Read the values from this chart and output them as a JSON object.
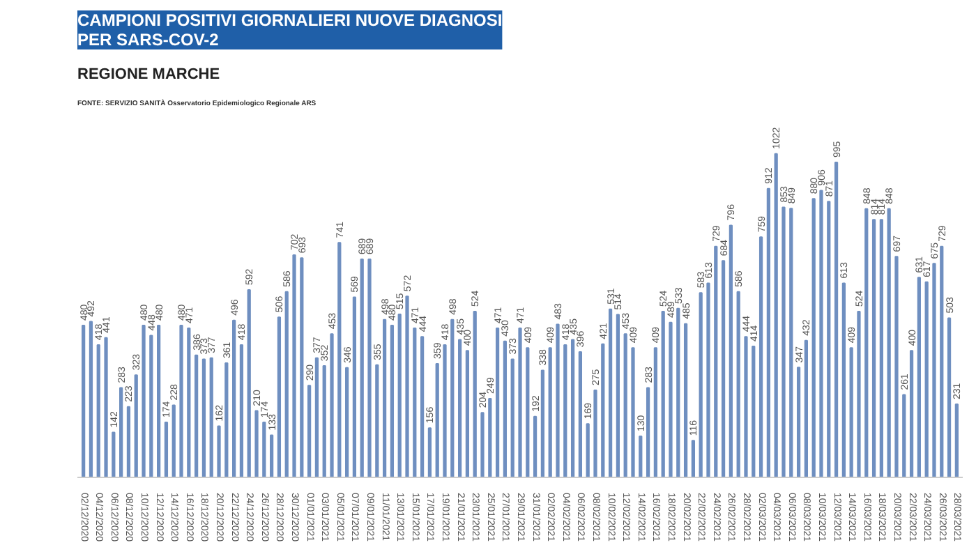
{
  "chart_data": {
    "type": "bar",
    "title": "CAMPIONI POSITIVI GIORNALIERI NUOVE DIAGNOSI\nPER SARS-COV-2",
    "subtitle": "REGIONE MARCHE",
    "annotations": [
      "FONTE: SERVIZIO SANITÀ Osservatorio Epidemiologico Regionale ARS"
    ],
    "categories": [
      "02/12/2020",
      null,
      "04/12/2020",
      null,
      "06/12/2020",
      null,
      "08/12/2020",
      null,
      "10/12/2020",
      null,
      "12/12/2020",
      null,
      "14/12/2020",
      null,
      "16/12/2020",
      null,
      "18/12/2020",
      null,
      "20/12/2020",
      null,
      "22/12/2020",
      null,
      "24/12/2020",
      null,
      "26/12/2020",
      null,
      "28/12/2020",
      null,
      "30/12/2020",
      null,
      "01/01/2021",
      null,
      "03/01/2021",
      null,
      "05/01/2021",
      null,
      "07/01/2021",
      null,
      "09/01/2021",
      null,
      "11/01/2021",
      null,
      "13/01/2021",
      null,
      "15/01/2021",
      null,
      "17/01/2021",
      null,
      "19/01/2021",
      null,
      "21/01/2021",
      null,
      "23/01/2021",
      null,
      "25/01/2021",
      null,
      "27/01/2021",
      null,
      "29/01/2021",
      null,
      "31/01/2021",
      null,
      "02/02/2021",
      null,
      "04/02/2021",
      null,
      "06/02/2021",
      null,
      "08/02/2021",
      null,
      "10/02/2021",
      null,
      "12/02/2021",
      null,
      "14/02/2021",
      null,
      "16/02/2021",
      null,
      "18/02/2021",
      null,
      "20/02/2021",
      null,
      "22/02/2021",
      null,
      "24/02/2021",
      null,
      "26/02/2021",
      null,
      "28/02/2021",
      null,
      "02/03/2021",
      null,
      "04/03/2021",
      null,
      "06/03/2021",
      null,
      "08/03/2021",
      null,
      "10/03/2021",
      null,
      "12/03/2021",
      null,
      "14/03/2021",
      null,
      "16/03/2021",
      null,
      "18/03/2021",
      null,
      "20/03/2021",
      null,
      "22/03/2021",
      null,
      "24/03/2021",
      null,
      "26/03/2021",
      null,
      "28/03/2021"
    ],
    "values": [
      480,
      492,
      418,
      441,
      142,
      283,
      223,
      323,
      480,
      448,
      480,
      174,
      228,
      480,
      471,
      386,
      373,
      377,
      162,
      361,
      496,
      418,
      592,
      210,
      174,
      133,
      506,
      586,
      702,
      693,
      290,
      377,
      352,
      453,
      741,
      346,
      569,
      689,
      689,
      355,
      498,
      480,
      515,
      572,
      471,
      444,
      156,
      359,
      418,
      498,
      435,
      400,
      524,
      204,
      249,
      471,
      430,
      373,
      471,
      409,
      192,
      338,
      409,
      483,
      418,
      435,
      396,
      169,
      275,
      421,
      531,
      514,
      453,
      409,
      130,
      283,
      409,
      524,
      489,
      533,
      485,
      116,
      583,
      613,
      729,
      684,
      796,
      586,
      444,
      414,
      759,
      912,
      1022,
      853,
      849,
      347,
      432,
      880,
      906,
      871,
      995,
      613,
      409,
      524,
      848,
      814,
      814,
      848,
      697,
      261,
      400,
      631,
      617,
      675,
      729,
      503,
      231
    ],
    "color": "#6f8fc0",
    "data_labels": true,
    "grid": false
  }
}
